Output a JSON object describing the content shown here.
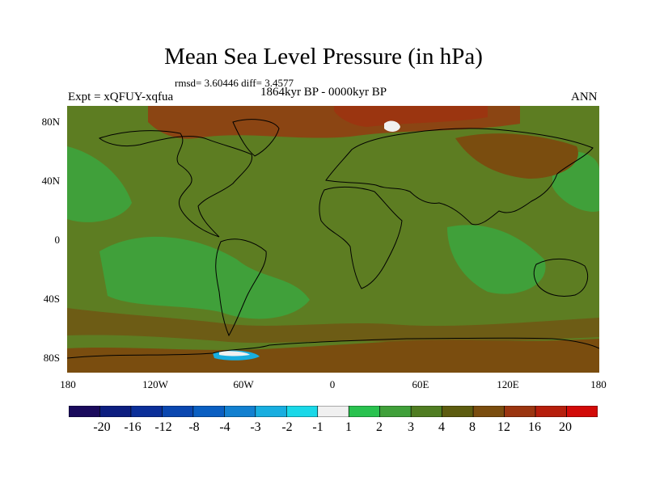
{
  "title": "Mean Sea Level Pressure (in hPa)",
  "stats": "rmsd= 3.60446 diff= 3.4577",
  "period": "1864kyr BP - 0000kyr BP",
  "experiment": "Expt = xQFUY-xqfua",
  "season": "ANN",
  "lat_ticks": [
    "80N",
    "40N",
    "0",
    "40S",
    "80S"
  ],
  "lon_ticks": [
    "180",
    "120W",
    "60W",
    "0",
    "60E",
    "120E",
    "180"
  ],
  "colorbar": {
    "labels": [
      "-20",
      "-16",
      "-12",
      "-8",
      "-4",
      "-3",
      "-2",
      "-1",
      "1",
      "2",
      "3",
      "4",
      "8",
      "12",
      "16",
      "20"
    ],
    "colors": [
      "#1a0a5c",
      "#0d1e80",
      "#0b2f99",
      "#0a47b0",
      "#0a5fc2",
      "#1280d0",
      "#18aee0",
      "#1ad8e8",
      "#f0f0f0",
      "#29c24f",
      "#40a03a",
      "#507d22",
      "#5d5c10",
      "#7a4d0f",
      "#9b3510",
      "#b61e0c",
      "#d20a08"
    ]
  },
  "field": {
    "base_color": "#5d7d22",
    "regions": [
      {
        "name": "arctic-high",
        "color": "#8b4513"
      },
      {
        "name": "barents-high",
        "color": "#9b3510"
      },
      {
        "name": "east-asia-high",
        "color": "#7a4d0f"
      },
      {
        "name": "southern-ocean-band",
        "color": "#6d5c15"
      },
      {
        "name": "antarctic-coast-high",
        "color": "#7a4d0f"
      },
      {
        "name": "atlantic-low",
        "color": "#40a03a"
      },
      {
        "name": "pacific-low",
        "color": "#40a03a"
      },
      {
        "name": "indian-low",
        "color": "#40a03a"
      },
      {
        "name": "svalbard-minimum",
        "color": "#f0f0f0"
      },
      {
        "name": "weddell-minimum",
        "color": "#18aee0"
      }
    ]
  }
}
